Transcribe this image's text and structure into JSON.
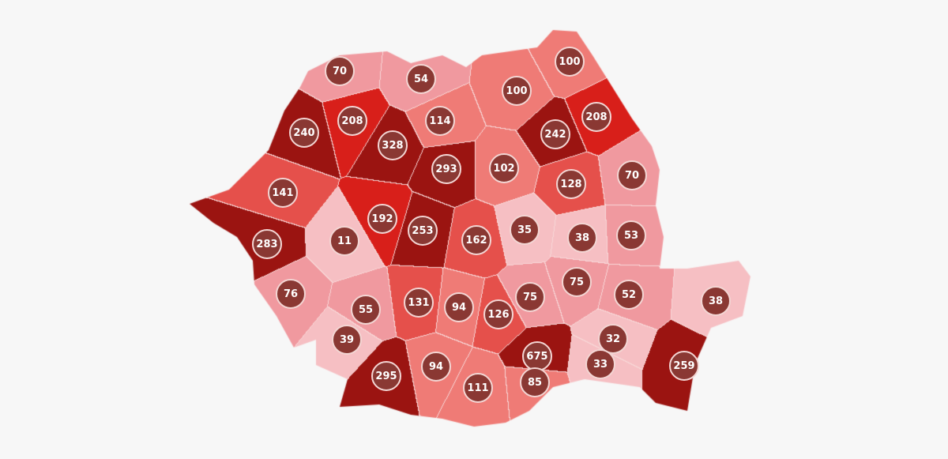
{
  "colors": {
    "background": "#f7f7f7",
    "scale": {
      "dark": "#9b1411",
      "red": "#d81f1a",
      "medium": "#e5504b",
      "salmon": "#ef7b76",
      "pink": "#f0999f",
      "light": "#f6bfc3"
    },
    "badge": "#8a3833"
  },
  "counties": [
    {
      "value": "70",
      "level": "pink"
    },
    {
      "value": "54",
      "level": "pink"
    },
    {
      "value": "100",
      "level": "salmon"
    },
    {
      "value": "100",
      "level": "salmon"
    },
    {
      "value": "240",
      "level": "dark"
    },
    {
      "value": "208",
      "level": "red"
    },
    {
      "value": "328",
      "level": "dark"
    },
    {
      "value": "114",
      "level": "salmon"
    },
    {
      "value": "293",
      "level": "dark"
    },
    {
      "value": "242",
      "level": "dark"
    },
    {
      "value": "208",
      "level": "red"
    },
    {
      "value": "102",
      "level": "salmon"
    },
    {
      "value": "128",
      "level": "medium"
    },
    {
      "value": "70",
      "level": "pink"
    },
    {
      "value": "141",
      "level": "medium"
    },
    {
      "value": "192",
      "level": "red"
    },
    {
      "value": "253",
      "level": "dark"
    },
    {
      "value": "162",
      "level": "medium"
    },
    {
      "value": "35",
      "level": "light"
    },
    {
      "value": "38",
      "level": "light"
    },
    {
      "value": "53",
      "level": "pink"
    },
    {
      "value": "11",
      "level": "light"
    },
    {
      "value": "283",
      "level": "dark"
    },
    {
      "value": "76",
      "level": "pink"
    },
    {
      "value": "55",
      "level": "pink"
    },
    {
      "value": "131",
      "level": "medium"
    },
    {
      "value": "94",
      "level": "salmon"
    },
    {
      "value": "126",
      "level": "medium"
    },
    {
      "value": "75",
      "level": "pink"
    },
    {
      "value": "75",
      "level": "pink"
    },
    {
      "value": "52",
      "level": "pink"
    },
    {
      "value": "38",
      "level": "light"
    },
    {
      "value": "39",
      "level": "light"
    },
    {
      "value": "295",
      "level": "dark"
    },
    {
      "value": "94",
      "level": "salmon"
    },
    {
      "value": "111",
      "level": "salmon"
    },
    {
      "value": "675",
      "level": "dark"
    },
    {
      "value": "85",
      "level": "salmon"
    },
    {
      "value": "32",
      "level": "light"
    },
    {
      "value": "33",
      "level": "light"
    },
    {
      "value": "259",
      "level": "dark"
    }
  ]
}
